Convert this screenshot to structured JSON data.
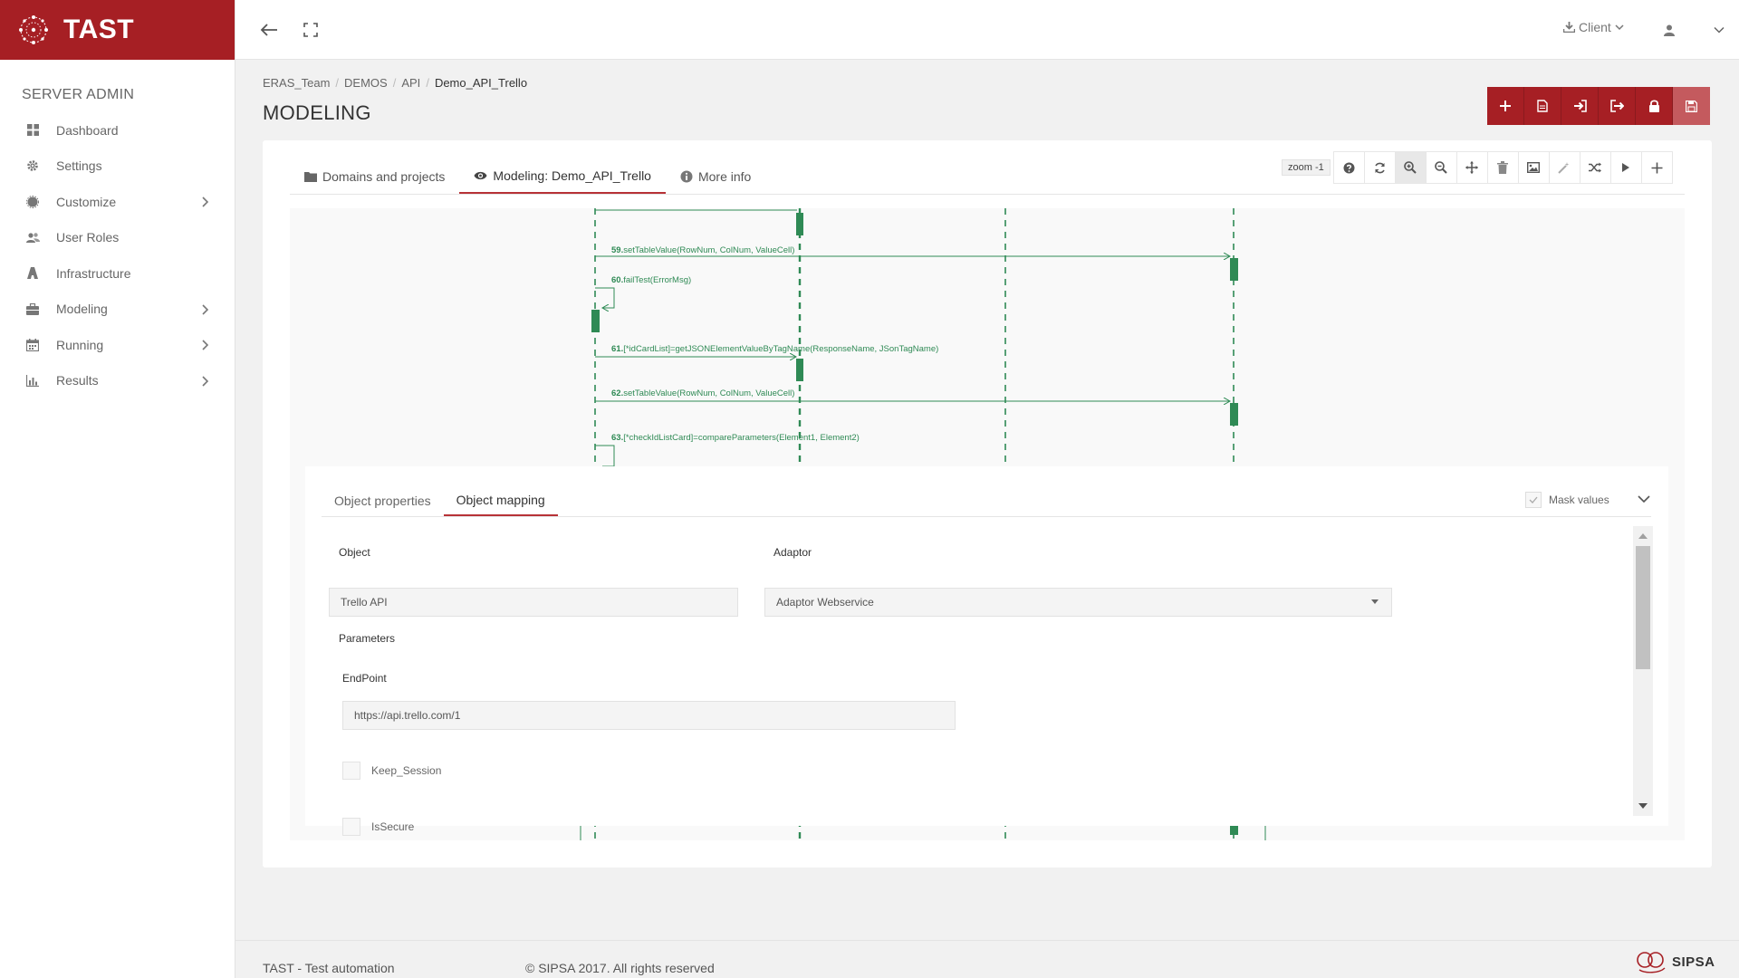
{
  "brand": {
    "name": "TAST"
  },
  "sidebar": {
    "section": "SERVER ADMIN",
    "items": [
      {
        "label": "Dashboard",
        "icon": "dashboard-icon",
        "expandable": false
      },
      {
        "label": "Settings",
        "icon": "gear-icon",
        "expandable": false
      },
      {
        "label": "Customize",
        "icon": "customize-icon",
        "expandable": true
      },
      {
        "label": "User Roles",
        "icon": "users-icon",
        "expandable": false
      },
      {
        "label": "Infrastructure",
        "icon": "infrastructure-icon",
        "expandable": false
      },
      {
        "label": "Modeling",
        "icon": "briefcase-icon",
        "expandable": true
      },
      {
        "label": "Running",
        "icon": "calendar-icon",
        "expandable": true
      },
      {
        "label": "Results",
        "icon": "bar-chart-icon",
        "expandable": true
      }
    ]
  },
  "topbar": {
    "client_label": "Client"
  },
  "breadcrumb": [
    "ERAS_Team",
    "DEMOS",
    "API",
    "Demo_API_Trello"
  ],
  "page": {
    "title": "MODELING"
  },
  "main_tabs": [
    {
      "label": "Domains and projects",
      "icon": "folder-icon"
    },
    {
      "label": "Modeling: Demo_API_Trello",
      "icon": "eye-icon"
    },
    {
      "label": "More info",
      "icon": "info-icon"
    }
  ],
  "toolbar": {
    "zoom_label": "zoom -1"
  },
  "sequence": {
    "messages": [
      {
        "num": "59.",
        "text": "setTableValue(RowNum, ColNum, ValueCell)"
      },
      {
        "num": "60.",
        "text": "failTest(ErrorMsg)"
      },
      {
        "num": "61.",
        "text": "[*idCardList]=getJSONElementValueByTagName(ResponseName, JSonTagName)"
      },
      {
        "num": "62.",
        "text": "setTableValue(RowNum, ColNum, ValueCell)"
      },
      {
        "num": "63.",
        "text": "[*checkIdListCard]=compareParameters(Element1, Element2)"
      }
    ]
  },
  "panel": {
    "tabs": [
      "Object properties",
      "Object mapping"
    ],
    "mask_label": "Mask values",
    "object_label": "Object",
    "object_value": "Trello API",
    "adaptor_label": "Adaptor",
    "adaptor_value": "Adaptor Webservice",
    "parameters_label": "Parameters",
    "endpoint_label": "EndPoint",
    "endpoint_value": "https://api.trello.com/1",
    "keep_session_label": "Keep_Session",
    "is_secure_label": "IsSecure"
  },
  "footer": {
    "left": "TAST - Test automation",
    "copyright": "© SIPSA 2017. All rights reserved",
    "logo_text": "SIPSA"
  },
  "colors": {
    "brand": "#a61f24",
    "sequence": "#2f8a55"
  }
}
